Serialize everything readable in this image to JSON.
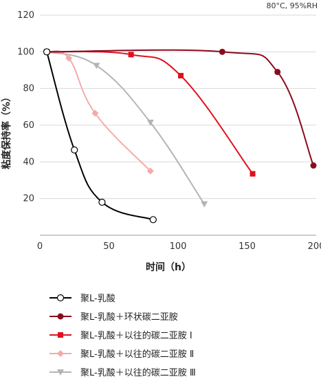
{
  "chart_data": {
    "type": "line",
    "annotation": "80°C, 95%RH",
    "xlabel": "时间（h）",
    "ylabel": "粘度保持率（%）",
    "xlim": [
      0,
      200
    ],
    "ylim": [
      0,
      120
    ],
    "xticks": [
      0,
      50,
      100,
      150,
      200
    ],
    "yticks": [
      20,
      40,
      60,
      80,
      100,
      120
    ],
    "grid": "horizontal",
    "legend_position": "bottom",
    "series": [
      {
        "name": "聚L-乳酸",
        "color": "#000000",
        "marker": "open-circle",
        "points": [
          [
            5,
            100
          ],
          [
            25,
            46.5
          ],
          [
            45,
            18
          ],
          [
            82,
            8.5
          ]
        ]
      },
      {
        "name": "聚L-乳酸＋环状碳二亚胺",
        "color": "#8b0a1e",
        "marker": "filled-circle",
        "points": [
          [
            5,
            100
          ],
          [
            132,
            100
          ],
          [
            172,
            89
          ],
          [
            198,
            38
          ]
        ]
      },
      {
        "name": "聚L-乳酸＋以往的碳二亚胺 Ⅰ",
        "color": "#e0101e",
        "marker": "square",
        "points": [
          [
            5,
            100
          ],
          [
            66,
            98.5
          ],
          [
            102,
            87
          ],
          [
            154,
            33.5
          ]
        ]
      },
      {
        "name": "聚L-乳酸＋以往的碳二亚胺 Ⅱ",
        "color": "#f4aaaa",
        "marker": "diamond",
        "points": [
          [
            5,
            100
          ],
          [
            21,
            96.5
          ],
          [
            40,
            66.5
          ],
          [
            80,
            35
          ]
        ]
      },
      {
        "name": "聚L-乳酸＋以往的碳二亚胺 Ⅲ",
        "color": "#b4b4b4",
        "marker": "triangle-down",
        "points": [
          [
            5,
            100
          ],
          [
            41,
            92.5
          ],
          [
            80,
            61.5
          ],
          [
            119,
            17
          ]
        ]
      }
    ]
  }
}
